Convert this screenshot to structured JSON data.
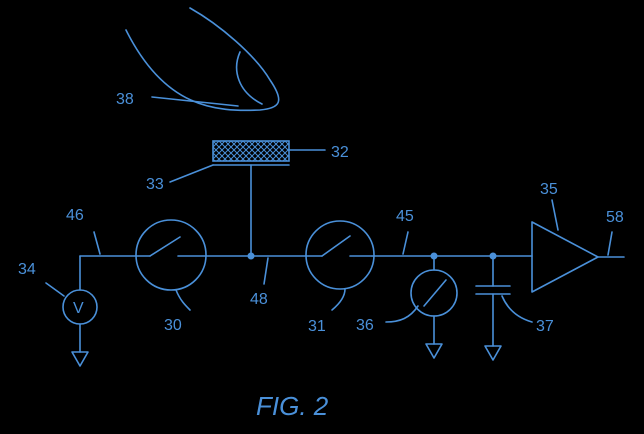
{
  "figure": {
    "caption": "FIG. 2",
    "color": "#4a90d9",
    "background": "#000000"
  },
  "labels": {
    "finger": "38",
    "sensor_pad": "32",
    "pad_base": "33",
    "amplifier": "35",
    "output": "58",
    "left_line": "46",
    "right_line": "45",
    "voltage_source": "34",
    "switch_left": "30",
    "node": "48",
    "switch_right": "31",
    "current_source": "36",
    "capacitor": "37"
  },
  "components": {
    "voltage_source_symbol": "V"
  }
}
